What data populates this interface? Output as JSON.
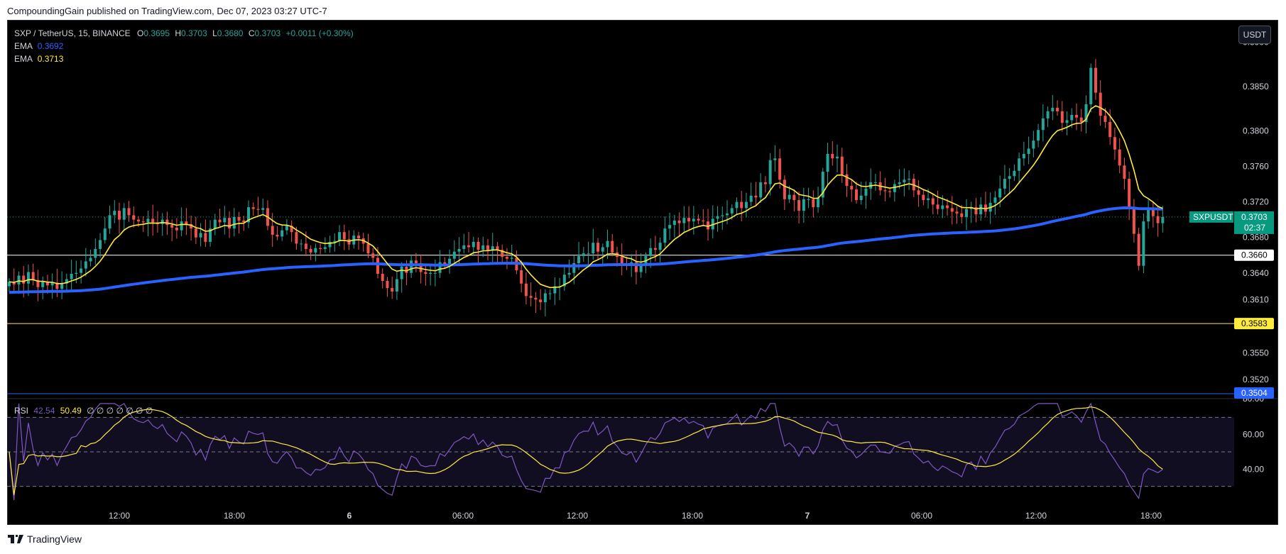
{
  "header": {
    "text": "CompoundingGain published on TradingView.com, Dec 07, 2023 03:27 UTC-7"
  },
  "currency_button": "USDT",
  "legend": {
    "symbol": "SXP / TetherUS, 15, BINANCE",
    "o_label": "O",
    "o_value": "0.3695",
    "h_label": "H",
    "h_value": "0.3703",
    "l_label": "L",
    "l_value": "0.3680",
    "c_label": "C",
    "c_value": "0.3703",
    "change": "+0.0011 (+0.30%)",
    "ema1_label": "EMA",
    "ema1_value": "0.3692",
    "ema1_color": "#2962ff",
    "ema2_label": "EMA",
    "ema2_value": "0.3713",
    "ema2_color": "#ffeb3b"
  },
  "rsi_legend": {
    "label": "RSI",
    "value1": "42.54",
    "value2": "50.49",
    "placeholders": "∅ ∅ ∅ ∅ ∅ ∅ ∅",
    "rsi_color": "#7e57c2",
    "ma_color": "#ffeb3b"
  },
  "chart_data": {
    "type": "candlestick",
    "symbol": "SXPUSDT",
    "price_axis": {
      "ticks": [
        "0.3900",
        "0.3850",
        "0.3800",
        "0.3760",
        "0.3720",
        "0.3680",
        "0.3640",
        "0.3610",
        "0.3550",
        "0.3520",
        "0.3500"
      ],
      "range": [
        0.35,
        0.3925
      ]
    },
    "time_axis": {
      "ticks": [
        "12:00",
        "18:00",
        "6",
        "06:00",
        "12:00",
        "18:00",
        "7",
        "06:00",
        "12:00",
        "18:00"
      ]
    },
    "price_labels": {
      "last": {
        "symbol": "SXPUSDT",
        "value": "0.3703",
        "countdown": "02:37",
        "color": "#089981"
      },
      "white_line": {
        "value": "0.3660"
      },
      "yellow_line": {
        "value": "0.3583"
      },
      "blue_line": {
        "value": "0.3504",
        "color": "#2962ff"
      }
    },
    "candles_close": [
      0.363,
      0.3627,
      0.3637,
      0.3628,
      0.3641,
      0.3632,
      0.3624,
      0.363,
      0.3626,
      0.3629,
      0.3622,
      0.3628,
      0.3633,
      0.3639,
      0.364,
      0.3645,
      0.3653,
      0.3657,
      0.3667,
      0.3677,
      0.369,
      0.3705,
      0.371,
      0.37,
      0.3713,
      0.3705,
      0.37,
      0.3698,
      0.3697,
      0.3701,
      0.3697,
      0.3695,
      0.37,
      0.3694,
      0.3691,
      0.3688,
      0.3698,
      0.3695,
      0.369,
      0.368,
      0.3685,
      0.3675,
      0.369,
      0.37,
      0.3697,
      0.3702,
      0.369,
      0.3703,
      0.3699,
      0.3697,
      0.3714,
      0.3712,
      0.3711,
      0.3713,
      0.3693,
      0.3683,
      0.3681,
      0.3688,
      0.3693,
      0.3686,
      0.3673,
      0.3673,
      0.3667,
      0.3663,
      0.3668,
      0.3667,
      0.3669,
      0.3675,
      0.3676,
      0.3686,
      0.3678,
      0.3672,
      0.3682,
      0.3679,
      0.3673,
      0.3662,
      0.3657,
      0.3639,
      0.3631,
      0.3623,
      0.3619,
      0.3633,
      0.3647,
      0.364,
      0.3654,
      0.3651,
      0.3641,
      0.3639,
      0.364,
      0.364,
      0.3652,
      0.3649,
      0.3656,
      0.3664,
      0.3667,
      0.3671,
      0.3669,
      0.3675,
      0.3666,
      0.3671,
      0.3665,
      0.367,
      0.3666,
      0.3658,
      0.3656,
      0.3657,
      0.3643,
      0.3628,
      0.3614,
      0.3612,
      0.361,
      0.3607,
      0.3617,
      0.3617,
      0.3625,
      0.3625,
      0.3638,
      0.364,
      0.3651,
      0.3659,
      0.3662,
      0.3662,
      0.3674,
      0.3664,
      0.3669,
      0.3676,
      0.3663,
      0.3658,
      0.3651,
      0.3649,
      0.3652,
      0.3641,
      0.3649,
      0.3659,
      0.3668,
      0.3666,
      0.3674,
      0.369,
      0.3694,
      0.3699,
      0.3696,
      0.3702,
      0.3698,
      0.3701,
      0.3699,
      0.3698,
      0.3689,
      0.3701,
      0.3704,
      0.3705,
      0.3707,
      0.3713,
      0.372,
      0.3713,
      0.372,
      0.3727,
      0.3725,
      0.3742,
      0.374,
      0.3767,
      0.3769,
      0.3745,
      0.3723,
      0.3728,
      0.3722,
      0.371,
      0.3723,
      0.3723,
      0.3714,
      0.3725,
      0.3754,
      0.3774,
      0.3769,
      0.3771,
      0.3751,
      0.3738,
      0.3734,
      0.3722,
      0.3727,
      0.3735,
      0.3742,
      0.3742,
      0.3733,
      0.3732,
      0.3731,
      0.374,
      0.3742,
      0.3745,
      0.3746,
      0.3733,
      0.3728,
      0.3722,
      0.3724,
      0.3717,
      0.3712,
      0.3716,
      0.3713,
      0.3709,
      0.3707,
      0.3703,
      0.3712,
      0.3714,
      0.3706,
      0.3717,
      0.3709,
      0.3719,
      0.3725,
      0.3735,
      0.3746,
      0.3749,
      0.3755,
      0.3769,
      0.3774,
      0.378,
      0.3789,
      0.3801,
      0.3814,
      0.3822,
      0.3826,
      0.3822,
      0.3809,
      0.3812,
      0.3818,
      0.3815,
      0.381,
      0.383,
      0.3871,
      0.3843,
      0.3817,
      0.381,
      0.3793,
      0.3779,
      0.3761,
      0.3746,
      0.3712,
      0.3684,
      0.3648,
      0.3698,
      0.3711,
      0.3704,
      0.3696,
      0.3703
    ],
    "ema_fast_color": "#ffeb3b",
    "ema_slow_color": "#2962ff",
    "rsi": {
      "ticks": [
        "80.00",
        "60.00",
        "40.00"
      ],
      "levels": [
        70,
        50,
        30
      ]
    }
  }
}
